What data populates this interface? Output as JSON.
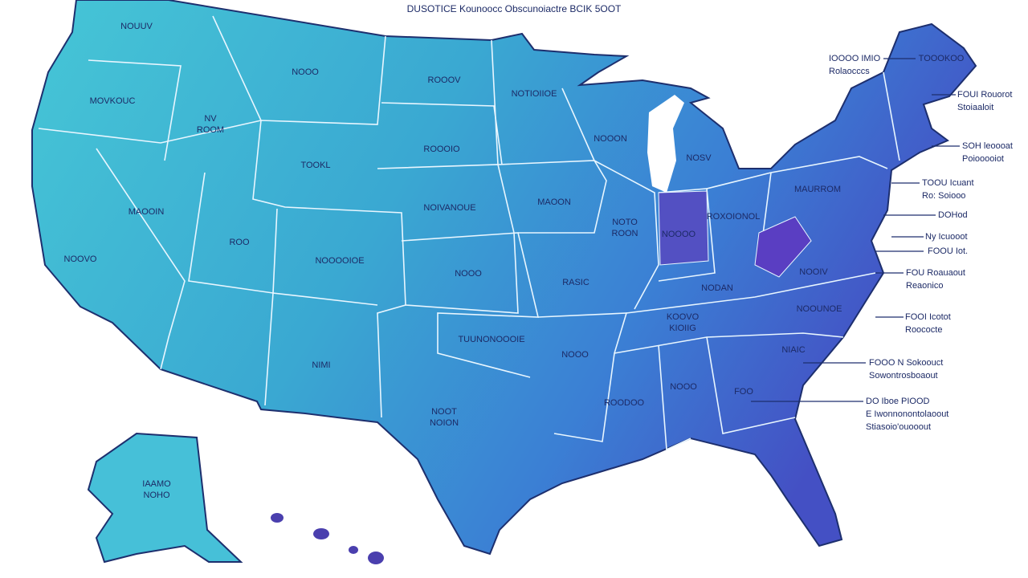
{
  "title": "DUSOTICE Kounoocc Obscunoiactre BCIK 5OOT",
  "labels": [
    [
      "NOUUV"
    ],
    [
      "NOOO"
    ],
    [
      "ROOOV"
    ],
    [
      "NOTIOIIOE"
    ],
    [
      "MOVKOUC"
    ],
    [
      "NV",
      "ROOM"
    ],
    [
      "NOOON"
    ],
    [
      "ROOOIO"
    ],
    [
      "NOSV"
    ],
    [
      "TOOKL"
    ],
    [
      "MAURROM"
    ],
    [
      "MAOON"
    ],
    [
      "MAOOIN"
    ],
    [
      "NOIVANOUE"
    ],
    [
      "ROXOIONOL"
    ],
    [
      "NOTO",
      "ROON"
    ],
    [
      "NOOOO"
    ],
    [
      "ROO"
    ],
    [
      "NOOVO"
    ],
    [
      "NOOOOIOE"
    ],
    [
      "NOOO"
    ],
    [
      "NOOIV"
    ],
    [
      "RASIC"
    ],
    [
      "NODAN"
    ],
    [
      "NOOUNOE"
    ],
    [
      "KOOVO",
      "KIOIIG"
    ],
    [
      "TUUNONOOOIE"
    ],
    [
      "NOOO"
    ],
    [
      "NIAIC"
    ],
    [
      "NIMI"
    ],
    [
      "NOOO"
    ],
    [
      "FOO"
    ],
    [
      "ROODOO"
    ],
    [
      "NOOT",
      "NOION"
    ],
    [
      "IAAMO",
      "NOHO"
    ],
    [
      "TOOOKOO"
    ]
  ],
  "annotations": [
    [
      "IOOOO IMIO",
      "Rolaocccs"
    ],
    [
      "FOUI Rouorot",
      "Stoiaaloit"
    ],
    [
      "SOH leoooat",
      "Poiooooiot"
    ],
    [
      "TOOU Icuant",
      "Ro: Soiooo"
    ],
    [
      "DOHod"
    ],
    [
      "Ny Icuooot"
    ],
    [
      "FOOU Iot."
    ],
    [
      "FOU Roauaout",
      "Reaonico"
    ],
    [
      "FOOI Icotot",
      "Roococte"
    ],
    [
      "FOOO N Sokoouct",
      "Sowontrosboaout"
    ],
    [
      "DO Iboe PIOOD",
      "E Iwonnonontolaoout",
      "Stiasoio'ouooout"
    ]
  ]
}
